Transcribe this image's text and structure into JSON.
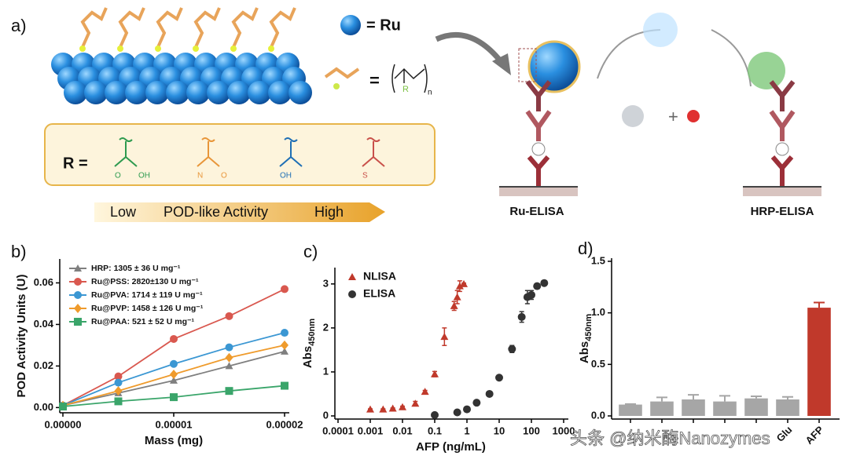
{
  "panel_labels": [
    "a)",
    "b)",
    "c)",
    "d)"
  ],
  "scheme": {
    "ru_legend": "= Ru",
    "formula_eq": "=",
    "formula_r": "R",
    "formula_n": "n",
    "r_eq": "R =",
    "r_groups": [
      {
        "color": "#2e9a4f",
        "labels": [
          "O",
          "OH"
        ]
      },
      {
        "color": "#e8963a",
        "labels": [
          "N",
          "O"
        ]
      },
      {
        "color": "#1f6fb5",
        "labels": [
          "OH"
        ]
      },
      {
        "color": "#c9504a",
        "labels": [
          "S"
        ]
      }
    ],
    "activity": [
      "Low",
      "POD-like Activity",
      "High"
    ],
    "plus": "+",
    "ru_elisa": "Ru-ELISA",
    "hrp_elisa": "HRP-ELISA"
  },
  "watermark": "头条 @纳米酶Nanozymes",
  "chart_data": [
    {
      "type": "line",
      "x_label": "Mass (mg)",
      "y_label": "POD Activity Units (U)",
      "x": [
        0,
        5e-06,
        1e-05,
        1.5e-05,
        2e-05
      ],
      "xlim": [
        0,
        2e-05
      ],
      "xticks": [
        {
          "value": 0,
          "label": "0.00000"
        },
        {
          "value": 1e-05,
          "label": "0.00001"
        },
        {
          "value": 2e-05,
          "label": "0.00002"
        }
      ],
      "ylim": [
        -0.001,
        0.07
      ],
      "yticks": [
        {
          "value": 0,
          "label": "0.00"
        },
        0.02,
        0.04,
        0.06
      ],
      "legend": "upper left",
      "series": [
        {
          "name": "HRP: 1305 ± 36 U mg⁻¹",
          "color": "#7f7f7f",
          "marker": "triangle",
          "values": [
            0.001,
            0.007,
            0.013,
            0.02,
            0.027
          ]
        },
        {
          "name": "Ru@PSS: 2820±130 U mg⁻¹",
          "color": "#d9584f",
          "marker": "circle",
          "values": [
            0.001,
            0.015,
            0.033,
            0.044,
            0.057
          ]
        },
        {
          "name": "Ru@PVA: 1714 ± 119 U mg⁻¹",
          "color": "#3b97d3",
          "marker": "circle",
          "values": [
            0.001,
            0.012,
            0.021,
            0.029,
            0.036
          ]
        },
        {
          "name": "Ru@PVP: 1458 ± 126 U mg⁻¹",
          "color": "#ef9b2c",
          "marker": "diamond",
          "values": [
            0.001,
            0.008,
            0.016,
            0.024,
            0.03
          ]
        },
        {
          "name": "Ru@PAA: 521 ± 52 U mg⁻¹",
          "color": "#3aa56a",
          "marker": "square",
          "values": [
            0.0005,
            0.003,
            0.005,
            0.008,
            0.0105
          ]
        }
      ]
    },
    {
      "type": "scatter",
      "x_label": "AFP (ng/mL)",
      "y_label": "Abs",
      "y_label_sub": "450nm",
      "xscale": "log",
      "xlim": [
        0.0001,
        1000
      ],
      "xticks": [
        0.0001,
        0.001,
        0.01,
        0.1,
        1,
        10,
        100,
        1000
      ],
      "ylim": [
        0,
        3.3
      ],
      "yticks": [
        0,
        1,
        2,
        3
      ],
      "legend": "upper left",
      "series": [
        {
          "name": "NLISA",
          "color": "#c0392b",
          "marker": "triangle",
          "x": [
            0.001,
            0.0025,
            0.005,
            0.01,
            0.025,
            0.05,
            0.1,
            0.2,
            0.4,
            0.5,
            0.6,
            0.8
          ],
          "values": [
            0.15,
            0.15,
            0.17,
            0.2,
            0.28,
            0.55,
            0.95,
            1.8,
            2.5,
            2.7,
            2.95,
            3.0
          ],
          "errors": [
            0.01,
            0.01,
            0.01,
            0.02,
            0.05,
            0.03,
            0.06,
            0.2,
            0.1,
            0.15,
            0.12,
            0.02
          ]
        },
        {
          "name": "ELISA",
          "color": "#333333",
          "marker": "circle",
          "x": [
            0.1,
            0.5,
            1,
            2,
            5,
            10,
            25,
            50,
            75,
            100,
            150,
            250
          ],
          "values": [
            0.02,
            0.08,
            0.15,
            0.3,
            0.5,
            0.87,
            1.52,
            2.25,
            2.7,
            2.75,
            2.95,
            3.02
          ],
          "errors": [
            0.01,
            0.01,
            0.01,
            0.02,
            0.02,
            0.03,
            0.08,
            0.12,
            0.15,
            0.1,
            0.06,
            0.04
          ]
        }
      ]
    },
    {
      "type": "bar",
      "y_label": "Abs",
      "y_label_sub": "450nm",
      "categories": [
        null,
        null,
        null,
        null,
        null,
        "Glu",
        "AFP"
      ],
      "values": [
        0.11,
        0.14,
        0.16,
        0.14,
        0.17,
        0.16,
        1.05
      ],
      "errors": [
        0.005,
        0.04,
        0.045,
        0.055,
        0.02,
        0.025,
        0.05
      ],
      "colors": [
        "#a6a6a6",
        "#a6a6a6",
        "#a6a6a6",
        "#a6a6a6",
        "#a6a6a6",
        "#a6a6a6",
        "#c0392b"
      ],
      "ylim": [
        0,
        1.5
      ],
      "yticks": [
        {
          "value": 0,
          "label": "0.0"
        },
        0.5,
        {
          "value": 1,
          "label": "1.0"
        },
        1.5
      ]
    }
  ]
}
